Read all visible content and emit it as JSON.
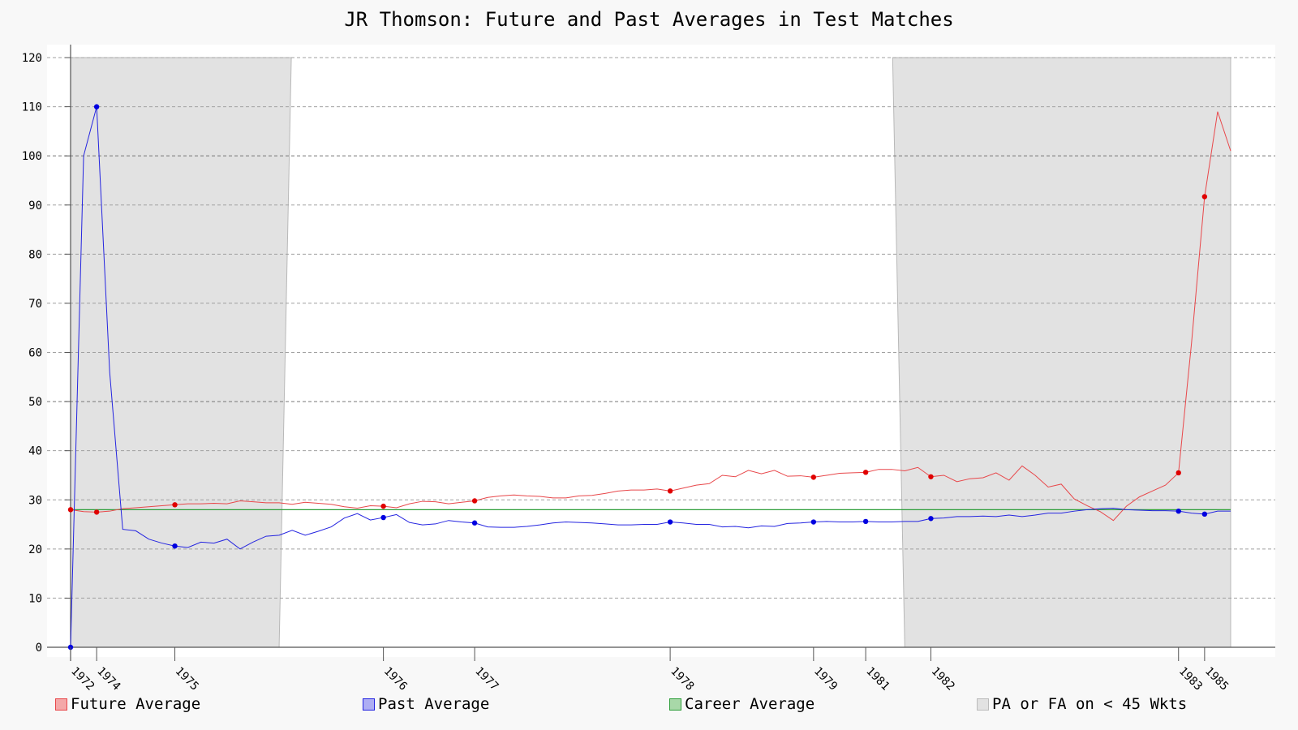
{
  "chart_data": {
    "type": "line",
    "title": "JR Thomson: Future and Past Averages in Test Matches",
    "ylim": [
      0,
      120
    ],
    "y_ticks": [
      0,
      10,
      20,
      30,
      40,
      50,
      60,
      70,
      80,
      90,
      100,
      110,
      120
    ],
    "grid": true,
    "legend_position": "bottom",
    "x_tick_labels": [
      {
        "match": 1,
        "label": "1972"
      },
      {
        "match": 3,
        "label": "1974"
      },
      {
        "match": 9,
        "label": "1975"
      },
      {
        "match": 25,
        "label": "1976"
      },
      {
        "match": 32,
        "label": "1977"
      },
      {
        "match": 47,
        "label": "1978"
      },
      {
        "match": 58,
        "label": "1979"
      },
      {
        "match": 62,
        "label": "1981"
      },
      {
        "match": 67,
        "label": "1982"
      },
      {
        "match": 86,
        "label": "1983"
      },
      {
        "match": 88,
        "label": "1985"
      }
    ],
    "x_range": [
      1,
      90
    ],
    "series": [
      {
        "name": "Future Average",
        "color": "#e8474a",
        "values": [
          28.0,
          27.6,
          27.5,
          27.7,
          28.2,
          28.4,
          28.6,
          28.8,
          29.0,
          29.2,
          29.2,
          29.3,
          29.2,
          29.8,
          29.6,
          29.4,
          29.4,
          29.1,
          29.5,
          29.3,
          29.1,
          28.6,
          28.3,
          28.8,
          28.7,
          28.4,
          29.2,
          29.7,
          29.6,
          29.2,
          29.5,
          29.8,
          30.5,
          30.8,
          31.0,
          30.8,
          30.7,
          30.4,
          30.4,
          30.8,
          30.9,
          31.3,
          31.8,
          32.0,
          32.0,
          32.2,
          31.8,
          32.4,
          33.0,
          33.3,
          35.0,
          34.7,
          36.0,
          35.3,
          36.0,
          34.8,
          34.9,
          34.6,
          35.0,
          35.4,
          35.5,
          35.6,
          36.2,
          36.2,
          35.9,
          36.6,
          34.7,
          35.0,
          33.7,
          34.3,
          34.5,
          35.5,
          34.0,
          36.9,
          35.0,
          32.6,
          33.2,
          30.2,
          28.8,
          27.6,
          25.8,
          28.7,
          30.6,
          31.8,
          33.0,
          35.5,
          62.0,
          91.7,
          109.0,
          101.0
        ]
      },
      {
        "name": "Past Average",
        "color": "#2424e0",
        "values": [
          0.0,
          100.0,
          110.0,
          56.0,
          24.0,
          23.7,
          22.0,
          21.2,
          20.6,
          20.3,
          21.4,
          21.2,
          22.0,
          20.0,
          21.4,
          22.6,
          22.8,
          23.8,
          22.8,
          23.6,
          24.5,
          26.3,
          27.2,
          25.9,
          26.4,
          27.0,
          25.4,
          24.9,
          25.1,
          25.8,
          25.5,
          25.3,
          24.5,
          24.4,
          24.4,
          24.6,
          24.9,
          25.3,
          25.5,
          25.4,
          25.3,
          25.1,
          24.9,
          24.9,
          25.0,
          25.0,
          25.5,
          25.3,
          25.0,
          25.0,
          24.5,
          24.6,
          24.3,
          24.7,
          24.6,
          25.2,
          25.3,
          25.5,
          25.6,
          25.5,
          25.5,
          25.6,
          25.5,
          25.5,
          25.6,
          25.6,
          26.2,
          26.3,
          26.6,
          26.6,
          26.7,
          26.6,
          26.9,
          26.6,
          26.9,
          27.3,
          27.3,
          27.7,
          28.0,
          28.2,
          28.3,
          28.0,
          27.9,
          27.8,
          27.8,
          27.7,
          27.3,
          27.1,
          27.7,
          27.7
        ]
      },
      {
        "name": "Career Average",
        "color": "#2e9e3a",
        "values": [
          28.0,
          28.0
        ]
      }
    ],
    "shaded_regions": {
      "name": "PA or FA on < 45 Wkts",
      "color": "#e2e2e2",
      "ranges": [
        [
          1,
          17
        ],
        [
          65,
          90
        ]
      ]
    },
    "legend": [
      {
        "label": "Future Average",
        "fill": "#f4a8a8",
        "border": "#e8474a"
      },
      {
        "label": "Past Average",
        "fill": "#aeaef4",
        "border": "#2424e0"
      },
      {
        "label": "Career Average",
        "fill": "#a8d8a8",
        "border": "#2e9e3a"
      },
      {
        "label": "PA or FA on < 45 Wkts",
        "fill": "#e2e2e2",
        "border": "#bbbbbb"
      }
    ]
  }
}
